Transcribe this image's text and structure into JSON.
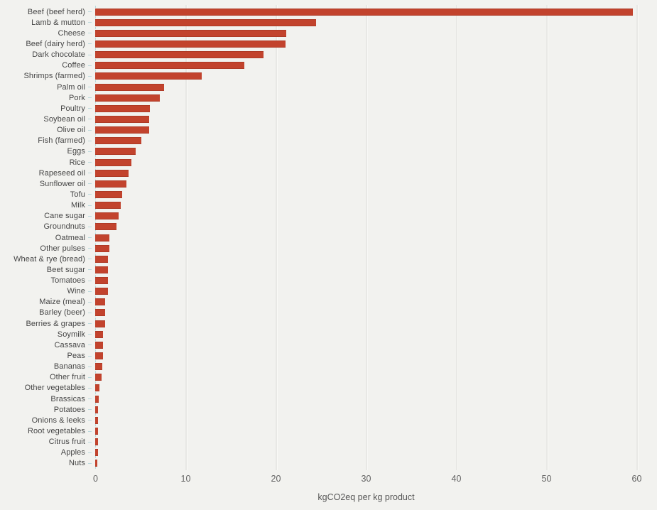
{
  "chart_data": {
    "type": "bar",
    "orientation": "horizontal",
    "xlabel": "kgCO2eq per kg product",
    "ylabel": "",
    "xlim": [
      0,
      61
    ],
    "x_ticks": [
      0,
      10,
      20,
      30,
      40,
      50,
      60
    ],
    "x_tick_labels": [
      "0",
      "10",
      "20",
      "30",
      "40",
      "50",
      "60"
    ],
    "grid": "vertical-gridlines-on",
    "legend": "none",
    "bar_color": "#c2432d",
    "background_color": "#f2f2ef",
    "categories": [
      "Beef (beef herd)",
      "Lamb & mutton",
      "Cheese",
      "Beef (dairy herd)",
      "Dark chocolate",
      "Coffee",
      "Shrimps (farmed)",
      "Palm oil",
      "Pork",
      "Poultry",
      "Soybean oil",
      "Olive oil",
      "Fish (farmed)",
      "Eggs",
      "Rice",
      "Rapeseed oil",
      "Sunflower oil",
      "Tofu",
      "Milk",
      "Cane sugar",
      "Groundnuts",
      "Oatmeal",
      "Other pulses",
      "Wheat & rye (bread)",
      "Beet sugar",
      "Tomatoes",
      "Wine",
      "Maize (meal)",
      "Barley (beer)",
      "Berries & grapes",
      "Soymilk",
      "Cassava",
      "Peas",
      "Bananas",
      "Other fruit",
      "Other vegetables",
      "Brassicas",
      "Potatoes",
      "Onions & leeks",
      "Root vegetables",
      "Citrus fruit",
      "Apples",
      "Nuts"
    ],
    "values": [
      59.6,
      24.5,
      21.2,
      21.1,
      18.7,
      16.5,
      11.8,
      7.6,
      7.2,
      6.1,
      6.0,
      6.0,
      5.1,
      4.5,
      4.0,
      3.7,
      3.5,
      3.0,
      2.8,
      2.6,
      2.4,
      1.6,
      1.6,
      1.4,
      1.4,
      1.4,
      1.4,
      1.1,
      1.1,
      1.1,
      0.9,
      0.9,
      0.9,
      0.8,
      0.7,
      0.5,
      0.4,
      0.3,
      0.3,
      0.3,
      0.3,
      0.3,
      0.2
    ]
  }
}
